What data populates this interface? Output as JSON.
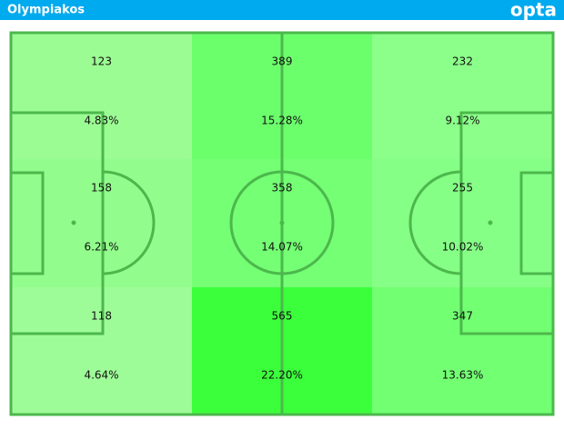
{
  "header": {
    "title": "Olympiakos",
    "logo": "opta"
  },
  "zones": [
    [
      {
        "count": 123,
        "share": "4.83%",
        "color": "#9cfc94"
      },
      {
        "count": 389,
        "share": "15.28%",
        "color": "#6cff6c"
      },
      {
        "count": 232,
        "share": "9.12%",
        "color": "#8cff8a"
      }
    ],
    [
      {
        "count": 158,
        "share": "6.21%",
        "color": "#92fd8c"
      },
      {
        "count": 358,
        "share": "14.07%",
        "color": "#74ff74"
      },
      {
        "count": 255,
        "share": "10.02%",
        "color": "#86ff86"
      }
    ],
    [
      {
        "count": 118,
        "share": "4.64%",
        "color": "#9efc98"
      },
      {
        "count": 565,
        "share": "22.20%",
        "color": "#3cff3c"
      },
      {
        "count": 347,
        "share": "13.63%",
        "color": "#72ff72"
      }
    ]
  ]
}
